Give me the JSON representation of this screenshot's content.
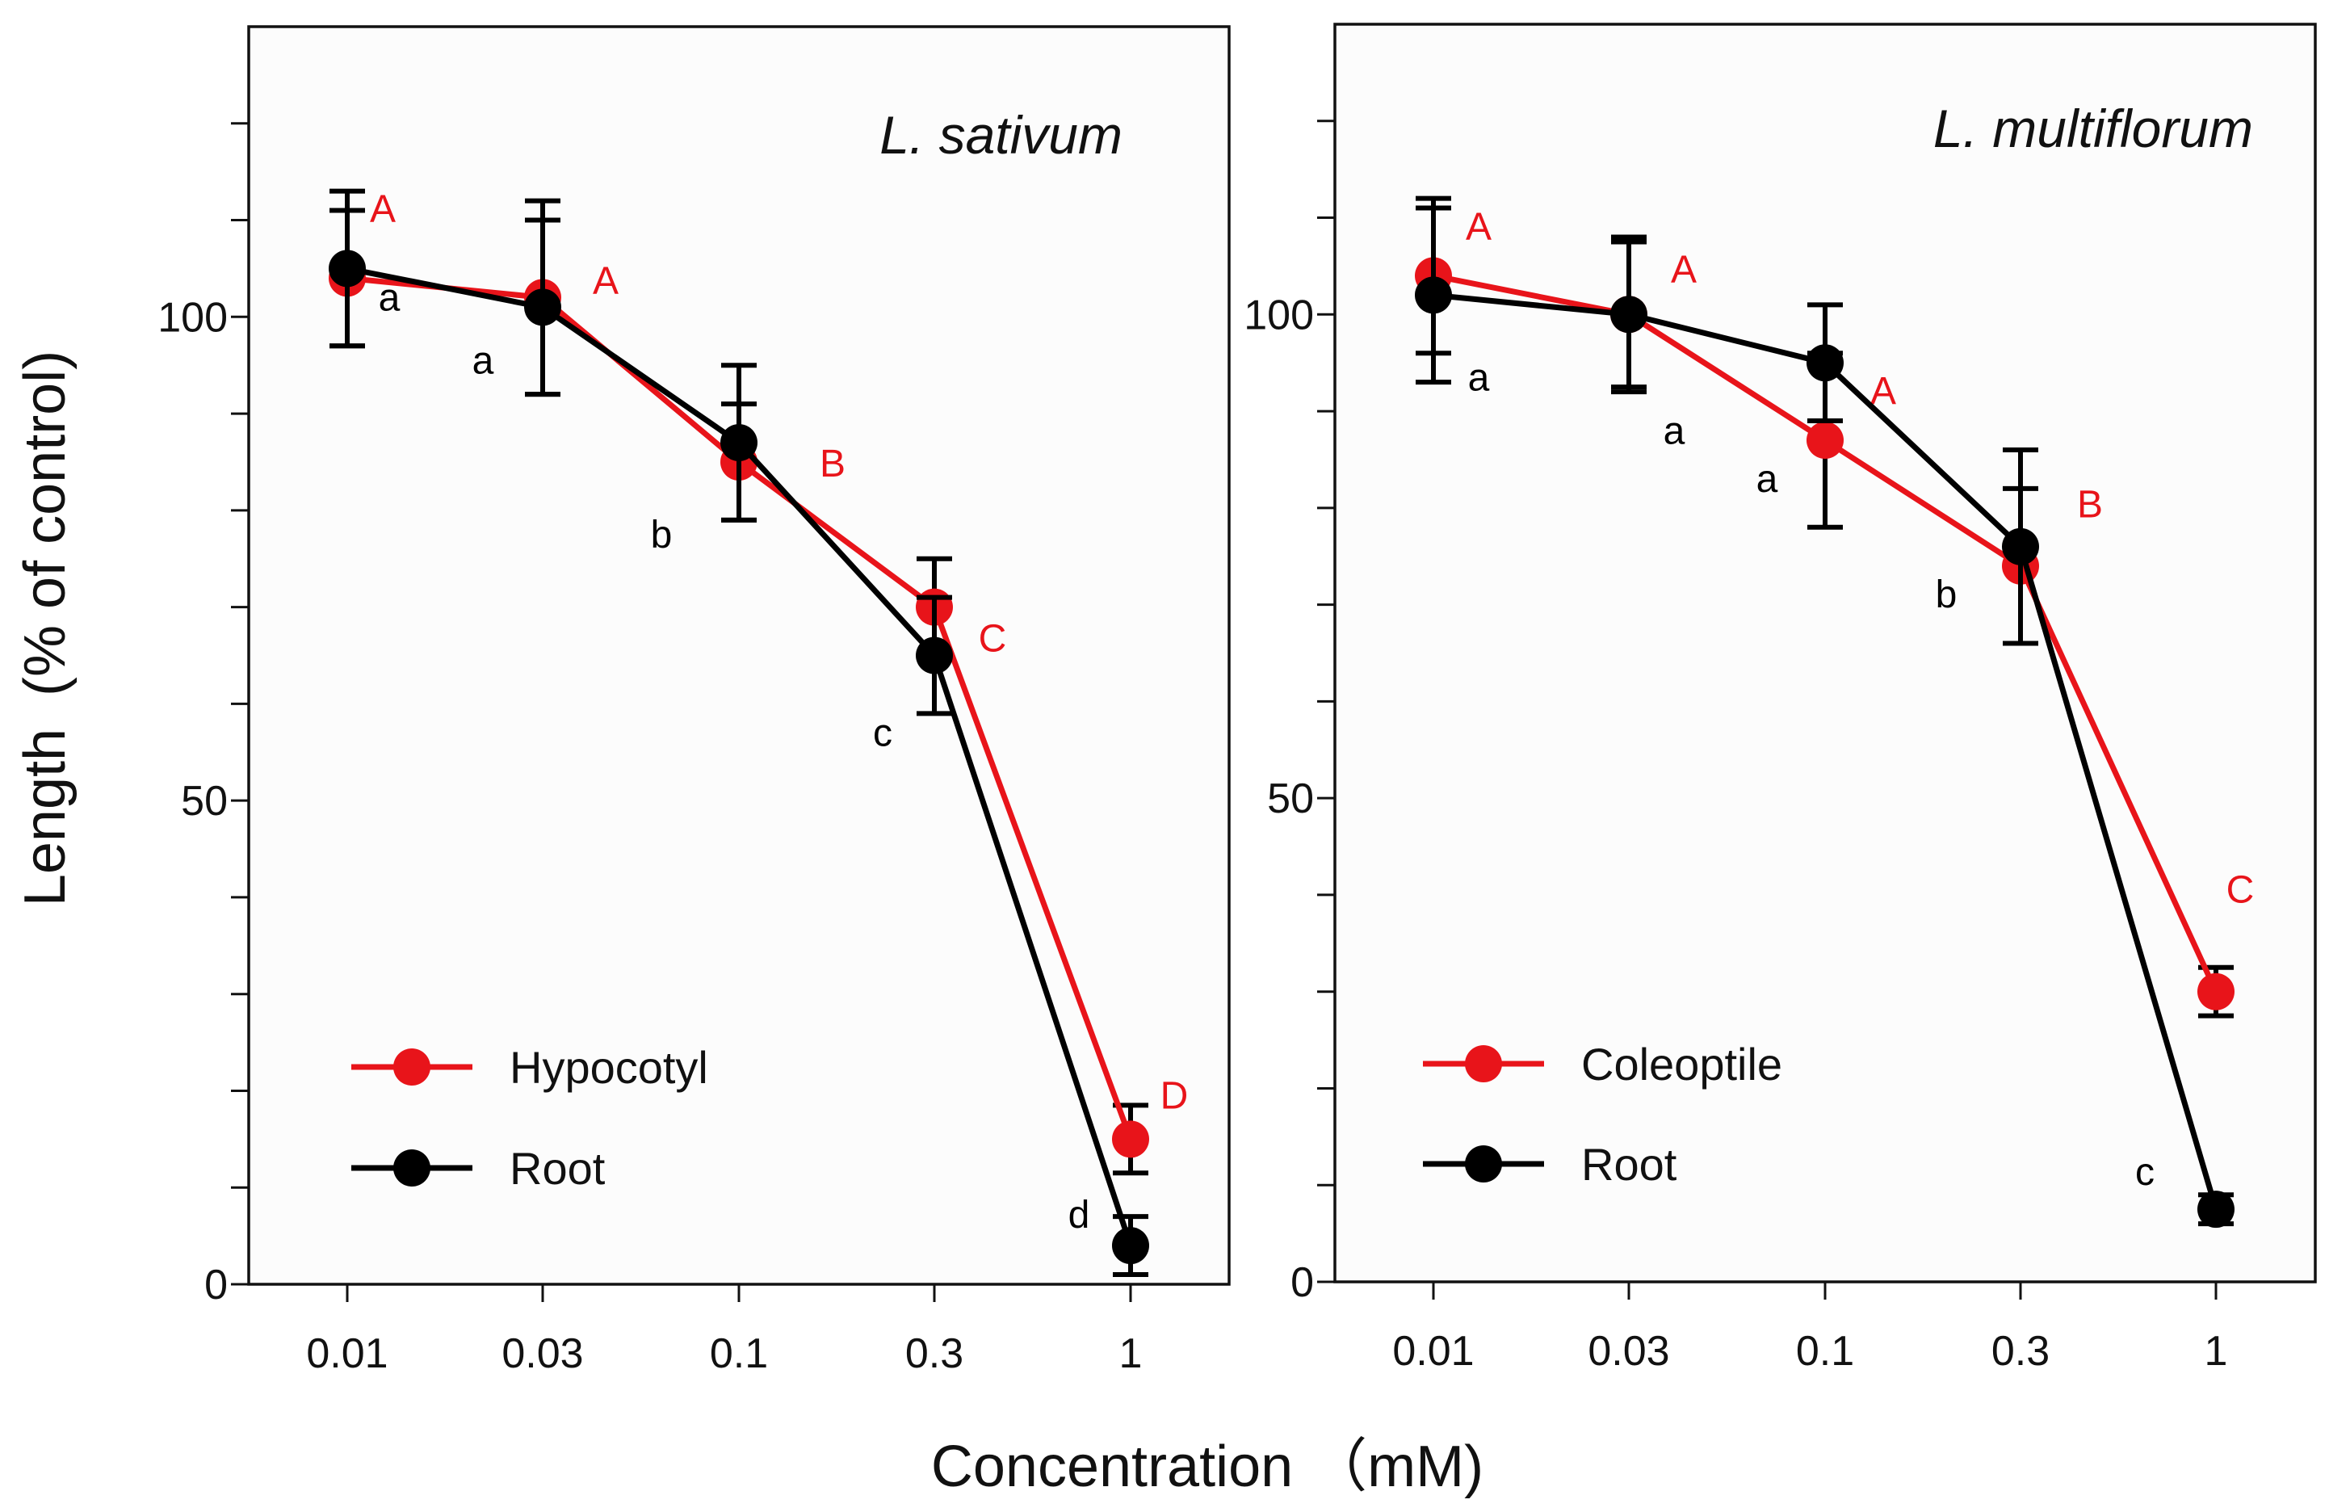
{
  "figure": {
    "ylabel": "Length  (% of control)",
    "xlabel": "Concentration （mM)"
  },
  "colors": {
    "red": "#e8141a",
    "black": "#000000",
    "axes": "#111111",
    "panel_bg": "#fcfcfc"
  },
  "chart_data": [
    {
      "type": "line",
      "title": "L. sativum",
      "xlabel": "Concentration (mM)",
      "ylabel": "Length (% of control)",
      "categories": [
        "0.01",
        "0.03",
        "0.1",
        "0.3",
        "1"
      ],
      "ylim": [
        0,
        130
      ],
      "yticks": [
        0,
        50,
        100
      ],
      "minor_yticks": [
        10,
        20,
        30,
        40,
        60,
        70,
        80,
        90,
        110,
        120
      ],
      "legend": "bottom-left",
      "series": [
        {
          "name": "Hypocotyl",
          "color": "red",
          "values": [
            104,
            102,
            85,
            70,
            15
          ],
          "errors": [
            7,
            10,
            6,
            5,
            3.5
          ],
          "sig_labels": [
            "A",
            "A",
            "B",
            "C",
            "D"
          ]
        },
        {
          "name": "Root",
          "color": "black",
          "values": [
            105,
            101,
            87,
            65,
            4
          ],
          "errors": [
            8,
            9,
            8,
            6,
            3
          ],
          "sig_labels": [
            "a",
            "a",
            "b",
            "c",
            "d"
          ]
        }
      ]
    },
    {
      "type": "line",
      "title": "L. multiflorum",
      "xlabel": "Concentration (mM)",
      "ylabel": "Length (% of control)",
      "categories": [
        "0.01",
        "0.03",
        "0.1",
        "0.3",
        "1"
      ],
      "ylim": [
        0,
        130
      ],
      "yticks": [
        0,
        50,
        100
      ],
      "minor_yticks": [
        10,
        20,
        30,
        40,
        60,
        70,
        80,
        90,
        110,
        120
      ],
      "legend": "bottom-left",
      "series": [
        {
          "name": "Coleoptile",
          "color": "red",
          "values": [
            104,
            100,
            87,
            74,
            30
          ],
          "errors": [
            8,
            8,
            9,
            8,
            2.5
          ],
          "sig_labels": [
            "A",
            "A",
            "A",
            "B",
            "C"
          ]
        },
        {
          "name": "Root",
          "color": "black",
          "values": [
            102,
            100,
            95,
            76,
            7.5
          ],
          "errors": [
            9,
            7.5,
            6,
            10,
            1.5
          ],
          "sig_labels": [
            "a",
            "a",
            "a",
            "b",
            "c"
          ]
        }
      ]
    }
  ]
}
